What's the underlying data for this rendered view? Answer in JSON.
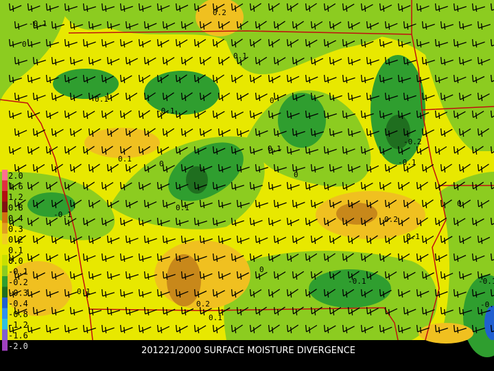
{
  "caption": "201221/2000 SURFACE MOISTURE DIVERGENCE",
  "legend": {
    "labels": [
      "2.0",
      "1.6",
      "1.2",
      "0.8",
      "0.4",
      "0.3",
      "0.2",
      "0.1",
      "0.0",
      "-0.1",
      "-0.2",
      "-0.3",
      "-0.4",
      "-0.8",
      "-1.2",
      "-1.6",
      "-2.0"
    ]
  },
  "contour_labels": [
    "-0.1",
    "0",
    "0.2",
    "0.1",
    "0.1",
    "-0.1",
    "0",
    "0.1",
    "0.1",
    "0",
    "0",
    "-0.1",
    "-0.2",
    "0.1",
    "-0.1",
    "0.2",
    "0.1",
    "0",
    "0",
    "-0.1",
    "-0.1",
    "-0.2",
    "0.1",
    "0.2",
    "0.1"
  ]
}
